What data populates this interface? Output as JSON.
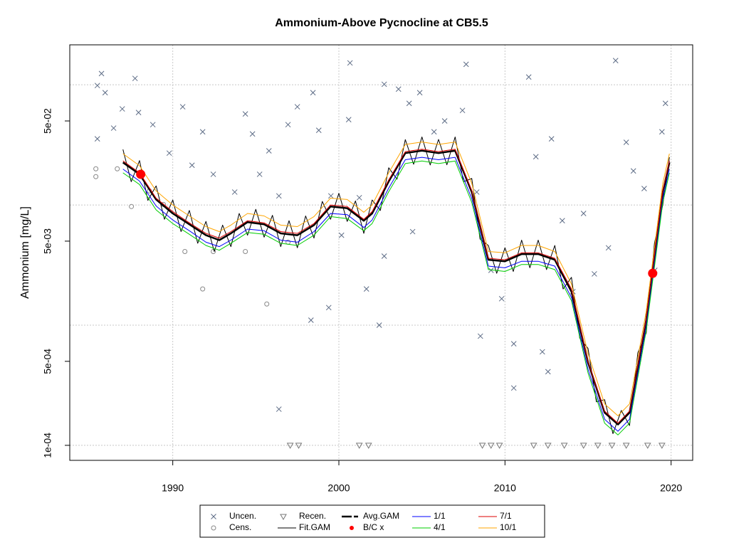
{
  "chart_data": {
    "type": "scatter",
    "title": "Ammonium-Above Pycnocline at CB5.5",
    "y_label": "Ammonium [mg/L]",
    "log_y": true,
    "grid": true,
    "xlim": [
      1983.8,
      2021.3
    ],
    "ylim": [
      7.5e-05,
      0.215
    ],
    "xticks": [
      1990,
      2000,
      2010,
      2020
    ],
    "yticks": [
      {
        "value": 0.0001,
        "label": "1e-04"
      },
      {
        "value": 0.0005,
        "label": "5e-04"
      },
      {
        "value": 0.005,
        "label": "5e-03"
      },
      {
        "value": 0.05,
        "label": "5e-02"
      }
    ],
    "ygrid": [
      0.0001,
      0.001,
      0.01,
      0.1
    ],
    "legend_position": "bottom",
    "series": [
      {
        "name": "Uncen.",
        "color": "#5c6b85",
        "style": "x",
        "x": [
          1985.46,
          1985.71,
          1985.93,
          1985.46,
          1986.44,
          1986.96,
          1987.73,
          1987.94,
          1988.8,
          1989.79,
          1990.6,
          1991.16,
          1991.8,
          1992.44,
          1993.73,
          1994.37,
          1994.8,
          1995.23,
          1995.79,
          1996.39,
          1996.94,
          1997.5,
          1998.44,
          1998.79,
          1999.52,
          2000.16,
          2000.67,
          2000.59,
          2001.23,
          2001.66,
          2002.43,
          2002.73,
          2003.59,
          2004.23,
          2004.87,
          2005.73,
          2006.37,
          2007.66,
          2007.44,
          2008.3,
          2008.52,
          2009.16,
          2009.8,
          2010.53,
          2010.53,
          2011.43,
          2011.86,
          2012.25,
          2012.59,
          2012.8,
          2013.45,
          2014.09,
          2014.73,
          2015.38,
          2016.23,
          2016.66,
          2017.3,
          2017.73,
          2018.38,
          2019.02,
          2019.45,
          2019.66,
          1996.39,
          1998.32,
          1999.39,
          2002.73,
          2004.44
        ],
        "values": [
          0.0986,
          0.124,
          0.086,
          0.0355,
          0.0436,
          0.063,
          0.113,
          0.0588,
          0.0466,
          0.027,
          0.0656,
          0.0214,
          0.0406,
          0.018,
          0.0128,
          0.0572,
          0.039,
          0.018,
          0.0282,
          0.0119,
          0.0466,
          0.0656,
          0.086,
          0.0418,
          0.0119,
          0.0056,
          0.152,
          0.0513,
          0.0115,
          0.002,
          0.001,
          0.101,
          0.092,
          0.0701,
          0.086,
          0.0406,
          0.05,
          0.148,
          0.0612,
          0.0128,
          0.00081,
          0.00286,
          0.00166,
          0.0003,
          0.0007,
          0.116,
          0.0252,
          0.0006,
          0.00041,
          0.0355,
          0.0074,
          0.0019,
          0.0085,
          0.00267,
          0.0044,
          0.159,
          0.0332,
          0.0192,
          0.0137,
          0.00286,
          0.0406,
          0.0701,
          0.0002,
          0.0011,
          0.0014,
          0.00375,
          0.006
        ]
      },
      {
        "name": "Cens.",
        "color": "#888888",
        "style": "o",
        "x": [
          1985.37,
          1985.37,
          1986.66,
          1987.51,
          1988.59,
          1989.44,
          1990.73,
          1991.8,
          1992.44,
          1994.37,
          1995.66,
          1996.94
        ],
        "values": [
          0.02,
          0.0172,
          0.02,
          0.0097,
          0.0131,
          0.0101,
          0.0041,
          0.002,
          0.0041,
          0.0041,
          0.0015,
          0.0049
        ]
      },
      {
        "name": "Recen.",
        "color": "#777777",
        "style": "triangle",
        "x": [
          1997.07,
          1997.58,
          2001.23,
          2001.79,
          2008.64,
          2009.16,
          2009.67,
          2011.73,
          2012.59,
          2013.57,
          2014.73,
          2015.59,
          2016.44,
          2017.3,
          2018.59,
          2019.45
        ],
        "values": [
          0.0001,
          0.0001,
          0.0001,
          0.0001,
          0.0001,
          0.0001,
          0.0001,
          0.0001,
          0.0001,
          0.0001,
          0.0001,
          0.0001,
          0.0001,
          0.0001,
          0.0001,
          0.0001
        ]
      },
      {
        "name": "Fit.GAM",
        "color": "#000000",
        "style": "line",
        "width": 1,
        "x": [
          1987,
          1987.5,
          1988,
          1988.5,
          1989,
          1989.5,
          1990,
          1990.5,
          1991,
          1991.5,
          1992,
          1992.5,
          1993,
          1993.5,
          1994,
          1994.5,
          1995,
          1995.5,
          1996,
          1996.5,
          1997,
          1997.5,
          1998,
          1998.5,
          1999,
          1999.5,
          2000,
          2000.5,
          2001,
          2001.5,
          2002,
          2002.5,
          2003,
          2003.5,
          2004,
          2004.5,
          2005,
          2005.5,
          2006,
          2006.5,
          2007,
          2007.5,
          2008,
          2008.5,
          2009,
          2009.5,
          2010,
          2010.5,
          2011,
          2011.5,
          2012,
          2012.5,
          2013,
          2013.5,
          2014,
          2014.5,
          2015,
          2015.5,
          2016,
          2016.5,
          2017,
          2017.5,
          2018,
          2018.5,
          2019,
          2019.5,
          2019.9
        ],
        "values": [
          0.029,
          0.0156,
          0.0234,
          0.0109,
          0.0144,
          0.0076,
          0.011,
          0.006,
          0.009,
          0.0048,
          0.0073,
          0.0041,
          0.0068,
          0.0045,
          0.0085,
          0.0056,
          0.0092,
          0.0054,
          0.0082,
          0.0045,
          0.0074,
          0.0044,
          0.0081,
          0.0053,
          0.0107,
          0.0076,
          0.0125,
          0.0073,
          0.0108,
          0.0058,
          0.011,
          0.009,
          0.0204,
          0.0164,
          0.035,
          0.0218,
          0.0368,
          0.0215,
          0.0351,
          0.0216,
          0.0368,
          0.0156,
          0.0166,
          0.0052,
          0.0046,
          0.0027,
          0.0044,
          0.0028,
          0.0051,
          0.003,
          0.0051,
          0.0029,
          0.0046,
          0.002,
          0.0025,
          0.00078,
          0.00064,
          0.00023,
          0.00024,
          0.000125,
          0.000195,
          0.000146,
          0.00059,
          0.00086,
          0.0048,
          0.01,
          0.025
        ]
      },
      {
        "name": "Avg.GAM",
        "color": "#000000",
        "style": "line",
        "width": 2.5,
        "x": [
          1987,
          1988,
          1989,
          1990,
          1991,
          1992,
          1992.8,
          1993.5,
          1994.5,
          1995.5,
          1996.5,
          1997.5,
          1998.5,
          1999.5,
          2000.5,
          2001.5,
          2002,
          2003,
          2004,
          2005,
          2006,
          2007,
          2008,
          2009,
          2010,
          2011,
          2012,
          2013,
          2014,
          2015,
          2016,
          2016.8,
          2017.5,
          2018.5,
          2019.5,
          2019.9
        ],
        "values": [
          0.0226,
          0.018,
          0.0111,
          0.0085,
          0.0069,
          0.0056,
          0.0051,
          0.0058,
          0.0072,
          0.0069,
          0.0058,
          0.0056,
          0.0068,
          0.0097,
          0.0094,
          0.0074,
          0.0085,
          0.0157,
          0.027,
          0.0283,
          0.027,
          0.0283,
          0.0128,
          0.0035,
          0.0034,
          0.0039,
          0.0039,
          0.0035,
          0.0019,
          0.00049,
          0.000187,
          0.000149,
          0.000187,
          0.0011,
          0.0128,
          0.0226
        ]
      },
      {
        "name": "B/C x",
        "color": "#ff0000",
        "style": "dot",
        "x": [
          1988.07,
          2018.89
        ],
        "values": [
          0.018,
          0.0027
        ]
      },
      {
        "name": "1/1",
        "color": "#0000ff",
        "style": "line",
        "width": 1,
        "x": [
          1987,
          1988,
          1989,
          1990,
          1991,
          1992,
          1992.8,
          1993.5,
          1994.5,
          1995.5,
          1996.5,
          1997.5,
          1998.5,
          1999.5,
          2000.5,
          2001.5,
          2002,
          2003,
          2004,
          2005,
          2006,
          2007,
          2008,
          2009,
          2010,
          2011,
          2012,
          2013,
          2014,
          2015,
          2016,
          2016.8,
          2017.5,
          2018.5,
          2019.5,
          2019.9
        ],
        "values": [
          0.0199,
          0.0158,
          0.0098,
          0.0075,
          0.0061,
          0.0049,
          0.0045,
          0.0051,
          0.0063,
          0.0061,
          0.0051,
          0.0049,
          0.006,
          0.0085,
          0.0083,
          0.0065,
          0.0075,
          0.0138,
          0.0238,
          0.0249,
          0.0238,
          0.0249,
          0.0113,
          0.0031,
          0.003,
          0.0034,
          0.0034,
          0.0031,
          0.0017,
          0.00043,
          0.000165,
          0.000131,
          0.000165,
          0.00097,
          0.0113,
          0.0199
        ]
      },
      {
        "name": "4/1",
        "color": "#00cc00",
        "style": "line",
        "width": 1,
        "x": [
          1987,
          1988,
          1989,
          1990,
          1991,
          1992,
          1992.8,
          1993.5,
          1994.5,
          1995.5,
          1996.5,
          1997.5,
          1998.5,
          1999.5,
          2000.5,
          2001.5,
          2002,
          2003,
          2004,
          2005,
          2006,
          2007,
          2008,
          2009,
          2010,
          2011,
          2012,
          2013,
          2014,
          2015,
          2016,
          2016.8,
          2017.5,
          2018.5,
          2019.5,
          2019.9
        ],
        "values": [
          0.0185,
          0.0148,
          0.0091,
          0.007,
          0.0057,
          0.0046,
          0.0042,
          0.0048,
          0.0059,
          0.0057,
          0.0048,
          0.0046,
          0.0056,
          0.008,
          0.0077,
          0.0061,
          0.007,
          0.0129,
          0.0221,
          0.0232,
          0.0221,
          0.0232,
          0.0105,
          0.0029,
          0.0028,
          0.0032,
          0.0032,
          0.0029,
          0.0016,
          0.0004,
          0.000153,
          0.000122,
          0.000153,
          0.0009,
          0.0105,
          0.0185
        ]
      },
      {
        "name": "7/1",
        "color": "#dd0000",
        "style": "line",
        "width": 1,
        "x": [
          1987,
          1988,
          1989,
          1990,
          1991,
          1992,
          1992.8,
          1993.5,
          1994.5,
          1995.5,
          1996.5,
          1997.5,
          1998.5,
          1999.5,
          2000.5,
          2001.5,
          2002,
          2003,
          2004,
          2005,
          2006,
          2007,
          2008,
          2009,
          2010,
          2011,
          2012,
          2013,
          2014,
          2015,
          2016,
          2016.8,
          2017.5,
          2018.5,
          2019.5,
          2019.9
        ],
        "values": [
          0.0233,
          0.0185,
          0.0114,
          0.0088,
          0.0071,
          0.0058,
          0.0053,
          0.006,
          0.0074,
          0.0071,
          0.006,
          0.0058,
          0.007,
          0.01,
          0.0097,
          0.0076,
          0.0088,
          0.0162,
          0.0278,
          0.0291,
          0.0278,
          0.0291,
          0.0132,
          0.0036,
          0.0035,
          0.004,
          0.004,
          0.0036,
          0.002,
          0.0005,
          0.000193,
          0.000153,
          0.000193,
          0.00113,
          0.0132,
          0.0233
        ]
      },
      {
        "name": "10/1",
        "color": "#ffa500",
        "style": "line",
        "width": 1,
        "x": [
          1987,
          1988,
          1989,
          1990,
          1991,
          1992,
          1992.8,
          1993.5,
          1994.5,
          1995.5,
          1996.5,
          1997.5,
          1998.5,
          1999.5,
          2000.5,
          2001.5,
          2002,
          2003,
          2004,
          2005,
          2006,
          2007,
          2008,
          2009,
          2010,
          2011,
          2012,
          2013,
          2014,
          2015,
          2016,
          2016.8,
          2017.5,
          2018.5,
          2019.5,
          2019.9
        ],
        "values": [
          0.0267,
          0.0212,
          0.0131,
          0.01,
          0.0081,
          0.0066,
          0.006,
          0.0068,
          0.0085,
          0.0081,
          0.0068,
          0.0066,
          0.008,
          0.0114,
          0.0111,
          0.0087,
          0.01,
          0.0185,
          0.0319,
          0.0334,
          0.0319,
          0.0334,
          0.0151,
          0.0041,
          0.004,
          0.0046,
          0.0046,
          0.0041,
          0.0022,
          0.00058,
          0.000221,
          0.000176,
          0.000221,
          0.0013,
          0.0151,
          0.0267
        ]
      }
    ]
  }
}
